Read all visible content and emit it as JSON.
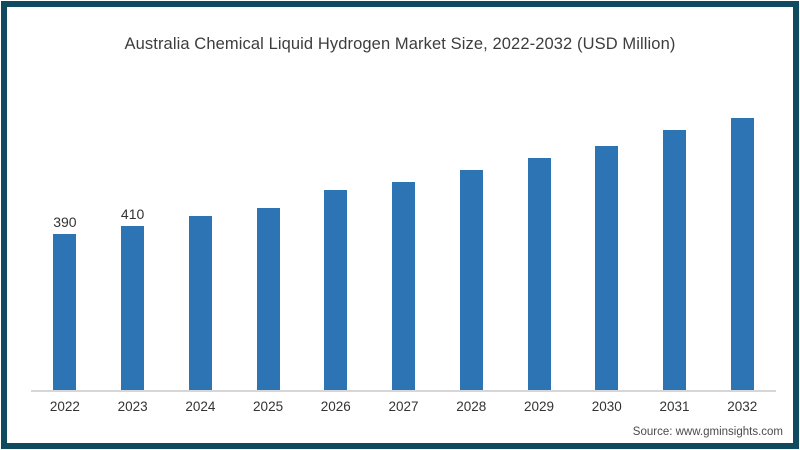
{
  "chart_data": {
    "type": "bar",
    "title": "Australia Chemical Liquid Hydrogen Market Size, 2022-2032 (USD Million)",
    "categories": [
      "2022",
      "2023",
      "2024",
      "2025",
      "2026",
      "2027",
      "2028",
      "2029",
      "2030",
      "2031",
      "2032"
    ],
    "values": [
      390,
      410,
      435,
      455,
      500,
      520,
      550,
      580,
      610,
      650,
      680
    ],
    "data_labels": [
      "390",
      "410",
      "",
      "",
      "",
      "",
      "",
      "",
      "",
      "",
      ""
    ],
    "xlabel": "",
    "ylabel": "",
    "unit": "USD Million",
    "ylim": [
      0,
      825
    ],
    "grid": false,
    "legend": false,
    "bar_color": "#2d74b5"
  },
  "footer": {
    "source": "Source: www.gminsights.com"
  },
  "colors": {
    "frame_border": "#0f4a5e",
    "axis_line": "#d6d6d6",
    "title_text": "#3d3d3d",
    "label_text": "#333333",
    "source_text": "#4b4b4b"
  }
}
